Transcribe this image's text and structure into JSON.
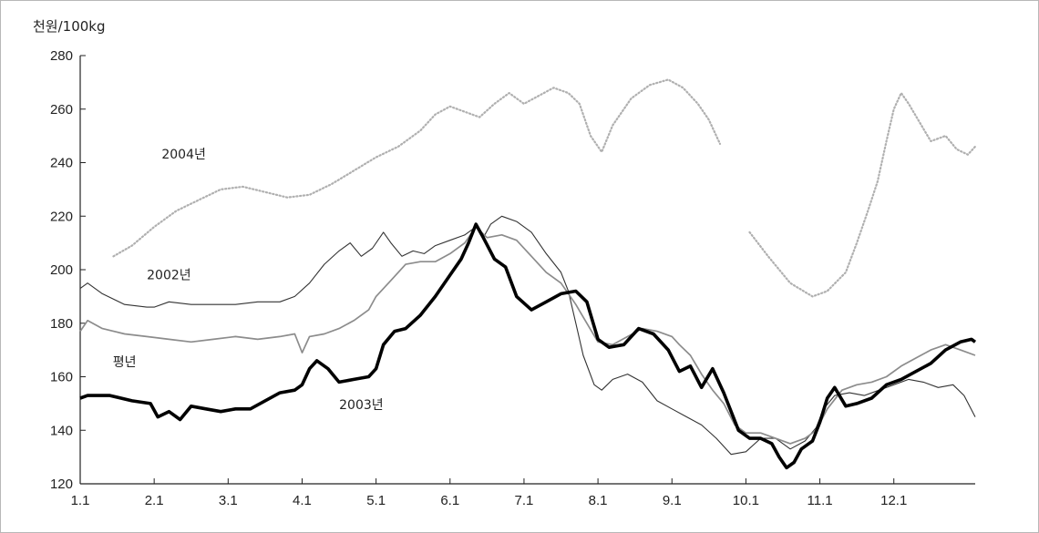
{
  "chart_data": {
    "type": "line",
    "ylabel": "천원/100kg",
    "ylim": [
      120,
      280
    ],
    "yticks": [
      120,
      140,
      160,
      180,
      200,
      220,
      240,
      260,
      280
    ],
    "xlim": [
      1,
      13.1
    ],
    "xticks": [
      {
        "label": "1.1",
        "value": 1
      },
      {
        "label": "2.1",
        "value": 2
      },
      {
        "label": "3.1",
        "value": 3
      },
      {
        "label": "4.1",
        "value": 4
      },
      {
        "label": "5.1",
        "value": 5
      },
      {
        "label": "6.1",
        "value": 6
      },
      {
        "label": "7.1",
        "value": 7
      },
      {
        "label": "8.1",
        "value": 8
      },
      {
        "label": "9.1",
        "value": 9
      },
      {
        "label": "10.1",
        "value": 10
      },
      {
        "label": "11.1",
        "value": 11
      },
      {
        "label": "12.1",
        "value": 12
      }
    ],
    "grid": false,
    "series": [
      {
        "name": "2004년",
        "color": "#b0b0b0",
        "style": "dotted",
        "points": [
          [
            1.45,
            205
          ],
          [
            1.7,
            209
          ],
          [
            2.0,
            216
          ],
          [
            2.3,
            222
          ],
          [
            2.6,
            226
          ],
          [
            2.9,
            230
          ],
          [
            3.2,
            231
          ],
          [
            3.5,
            229
          ],
          [
            3.8,
            227
          ],
          [
            4.1,
            228
          ],
          [
            4.4,
            232
          ],
          [
            4.7,
            237
          ],
          [
            5.0,
            242
          ],
          [
            5.3,
            246
          ],
          [
            5.6,
            252
          ],
          [
            5.8,
            258
          ],
          [
            6.0,
            261
          ],
          [
            6.2,
            259
          ],
          [
            6.4,
            257
          ],
          [
            6.6,
            262
          ],
          [
            6.8,
            266
          ],
          [
            7.0,
            262
          ],
          [
            7.2,
            265
          ],
          [
            7.4,
            268
          ],
          [
            7.6,
            266
          ],
          [
            7.75,
            262
          ],
          [
            7.9,
            250
          ],
          [
            8.05,
            244
          ],
          [
            8.2,
            254
          ],
          [
            8.45,
            264
          ],
          [
            8.7,
            269
          ],
          [
            8.95,
            271
          ],
          [
            9.15,
            268
          ],
          [
            9.35,
            262
          ],
          [
            9.5,
            256
          ],
          [
            9.65,
            247
          ],
          null,
          [
            10.05,
            214
          ],
          [
            10.3,
            205
          ],
          [
            10.6,
            195
          ],
          [
            10.9,
            190
          ],
          [
            11.1,
            192
          ],
          [
            11.35,
            199
          ],
          [
            11.5,
            210
          ],
          [
            11.65,
            222
          ],
          [
            11.78,
            233
          ],
          [
            11.9,
            248
          ],
          [
            12.0,
            260
          ],
          [
            12.1,
            266
          ],
          [
            12.2,
            262
          ],
          [
            12.35,
            255
          ],
          [
            12.5,
            248
          ],
          [
            12.7,
            250
          ],
          [
            12.85,
            245
          ],
          [
            13.0,
            243
          ],
          [
            13.1,
            246
          ]
        ]
      },
      {
        "name": "2002년",
        "color": "#333333",
        "style": "thin",
        "points": [
          [
            1.0,
            193
          ],
          [
            1.1,
            195
          ],
          [
            1.3,
            191
          ],
          [
            1.6,
            187
          ],
          [
            1.9,
            186
          ],
          [
            2.0,
            186
          ],
          [
            2.2,
            188
          ],
          [
            2.5,
            187
          ],
          [
            2.8,
            187
          ],
          [
            3.1,
            187
          ],
          [
            3.4,
            188
          ],
          [
            3.7,
            188
          ],
          [
            3.9,
            190
          ],
          [
            4.1,
            195
          ],
          [
            4.3,
            202
          ],
          [
            4.5,
            207
          ],
          [
            4.65,
            210
          ],
          [
            4.8,
            205
          ],
          [
            4.95,
            208
          ],
          [
            5.1,
            214
          ],
          [
            5.2,
            210
          ],
          [
            5.35,
            205
          ],
          [
            5.5,
            207
          ],
          [
            5.65,
            206
          ],
          [
            5.8,
            209
          ],
          [
            6.0,
            211
          ],
          [
            6.2,
            213
          ],
          [
            6.35,
            216
          ],
          [
            6.45,
            212
          ],
          [
            6.55,
            217
          ],
          [
            6.7,
            220
          ],
          [
            6.9,
            218
          ],
          [
            7.1,
            214
          ],
          [
            7.3,
            206
          ],
          [
            7.5,
            199
          ],
          [
            7.6,
            192
          ],
          [
            7.7,
            180
          ],
          [
            7.8,
            168
          ],
          [
            7.95,
            157
          ],
          [
            8.05,
            155
          ],
          [
            8.2,
            159
          ],
          [
            8.4,
            161
          ],
          [
            8.6,
            158
          ],
          [
            8.8,
            151
          ],
          [
            9.0,
            148
          ],
          [
            9.2,
            145
          ],
          [
            9.4,
            142
          ],
          [
            9.6,
            137
          ],
          [
            9.8,
            131
          ],
          [
            10.0,
            132
          ],
          [
            10.2,
            137
          ],
          [
            10.4,
            137
          ],
          [
            10.6,
            133
          ],
          [
            10.8,
            136
          ],
          [
            10.95,
            141
          ],
          [
            11.05,
            148
          ],
          [
            11.2,
            153
          ],
          [
            11.4,
            154
          ],
          [
            11.6,
            153
          ],
          [
            11.8,
            155
          ],
          [
            12.0,
            157
          ],
          [
            12.2,
            159
          ],
          [
            12.4,
            158
          ],
          [
            12.6,
            156
          ],
          [
            12.8,
            157
          ],
          [
            12.95,
            153
          ],
          [
            13.1,
            145
          ]
        ]
      },
      {
        "name": "평년",
        "color": "#8c8c8c",
        "style": "medium",
        "points": [
          [
            1.0,
            177
          ],
          [
            1.1,
            181
          ],
          [
            1.3,
            178
          ],
          [
            1.6,
            176
          ],
          [
            1.9,
            175
          ],
          [
            2.2,
            174
          ],
          [
            2.5,
            173
          ],
          [
            2.8,
            174
          ],
          [
            3.1,
            175
          ],
          [
            3.4,
            174
          ],
          [
            3.7,
            175
          ],
          [
            3.9,
            176
          ],
          [
            4.0,
            169
          ],
          [
            4.1,
            175
          ],
          [
            4.3,
            176
          ],
          [
            4.5,
            178
          ],
          [
            4.7,
            181
          ],
          [
            4.9,
            185
          ],
          [
            5.0,
            190
          ],
          [
            5.2,
            196
          ],
          [
            5.4,
            202
          ],
          [
            5.6,
            203
          ],
          [
            5.8,
            203
          ],
          [
            6.0,
            206
          ],
          [
            6.2,
            210
          ],
          [
            6.35,
            216
          ],
          [
            6.5,
            212
          ],
          [
            6.7,
            213
          ],
          [
            6.9,
            211
          ],
          [
            7.1,
            205
          ],
          [
            7.3,
            199
          ],
          [
            7.5,
            195
          ],
          [
            7.7,
            187
          ],
          [
            7.85,
            180
          ],
          [
            8.0,
            173
          ],
          [
            8.2,
            172
          ],
          [
            8.4,
            175
          ],
          [
            8.6,
            178
          ],
          [
            8.8,
            177
          ],
          [
            9.0,
            175
          ],
          [
            9.1,
            172
          ],
          [
            9.25,
            168
          ],
          [
            9.4,
            161
          ],
          [
            9.55,
            155
          ],
          [
            9.7,
            150
          ],
          [
            9.85,
            142
          ],
          [
            10.0,
            139
          ],
          [
            10.2,
            139
          ],
          [
            10.4,
            137
          ],
          [
            10.6,
            135
          ],
          [
            10.8,
            137
          ],
          [
            10.95,
            140
          ],
          [
            11.1,
            148
          ],
          [
            11.3,
            155
          ],
          [
            11.5,
            157
          ],
          [
            11.7,
            158
          ],
          [
            11.9,
            160
          ],
          [
            12.1,
            164
          ],
          [
            12.3,
            167
          ],
          [
            12.5,
            170
          ],
          [
            12.7,
            172
          ],
          [
            12.9,
            170
          ],
          [
            13.1,
            168
          ]
        ]
      },
      {
        "name": "2003년",
        "color": "#000000",
        "style": "thick",
        "points": [
          [
            1.0,
            152
          ],
          [
            1.1,
            153
          ],
          [
            1.4,
            153
          ],
          [
            1.7,
            151
          ],
          [
            1.95,
            150
          ],
          [
            2.05,
            145
          ],
          [
            2.2,
            147
          ],
          [
            2.35,
            144
          ],
          [
            2.5,
            149
          ],
          [
            2.7,
            148
          ],
          [
            2.9,
            147
          ],
          [
            3.1,
            148
          ],
          [
            3.3,
            148
          ],
          [
            3.5,
            151
          ],
          [
            3.7,
            154
          ],
          [
            3.9,
            155
          ],
          [
            4.0,
            157
          ],
          [
            4.1,
            163
          ],
          [
            4.2,
            166
          ],
          [
            4.35,
            163
          ],
          [
            4.5,
            158
          ],
          [
            4.7,
            159
          ],
          [
            4.9,
            160
          ],
          [
            5.0,
            163
          ],
          [
            5.1,
            172
          ],
          [
            5.25,
            177
          ],
          [
            5.4,
            178
          ],
          [
            5.6,
            183
          ],
          [
            5.8,
            190
          ],
          [
            6.0,
            198
          ],
          [
            6.15,
            204
          ],
          [
            6.25,
            210
          ],
          [
            6.35,
            217
          ],
          [
            6.45,
            212
          ],
          [
            6.6,
            204
          ],
          [
            6.75,
            201
          ],
          [
            6.9,
            190
          ],
          [
            7.1,
            185
          ],
          [
            7.3,
            188
          ],
          [
            7.5,
            191
          ],
          [
            7.7,
            192
          ],
          [
            7.85,
            188
          ],
          [
            8.0,
            174
          ],
          [
            8.15,
            171
          ],
          [
            8.35,
            172
          ],
          [
            8.55,
            178
          ],
          [
            8.75,
            176
          ],
          [
            8.95,
            170
          ],
          [
            9.1,
            162
          ],
          [
            9.25,
            164
          ],
          [
            9.4,
            156
          ],
          [
            9.55,
            163
          ],
          [
            9.7,
            154
          ],
          [
            9.9,
            140
          ],
          [
            10.05,
            137
          ],
          [
            10.2,
            137
          ],
          [
            10.35,
            135
          ],
          [
            10.45,
            130
          ],
          [
            10.55,
            126
          ],
          [
            10.65,
            128
          ],
          [
            10.75,
            133
          ],
          [
            10.9,
            136
          ],
          [
            11.0,
            143
          ],
          [
            11.1,
            152
          ],
          [
            11.2,
            156
          ],
          [
            11.35,
            149
          ],
          [
            11.5,
            150
          ],
          [
            11.7,
            152
          ],
          [
            11.9,
            157
          ],
          [
            12.1,
            159
          ],
          [
            12.3,
            162
          ],
          [
            12.5,
            165
          ],
          [
            12.7,
            170
          ],
          [
            12.9,
            173
          ],
          [
            13.05,
            174
          ],
          [
            13.1,
            173
          ]
        ]
      }
    ],
    "annotations": [
      {
        "text": "2004년",
        "x": 2.4,
        "y": 241.5
      },
      {
        "text": "2002년",
        "x": 2.2,
        "y": 196.5
      },
      {
        "text": "평년",
        "x": 1.6,
        "y": 164
      },
      {
        "text": "2003년",
        "x": 4.8,
        "y": 148
      }
    ]
  }
}
